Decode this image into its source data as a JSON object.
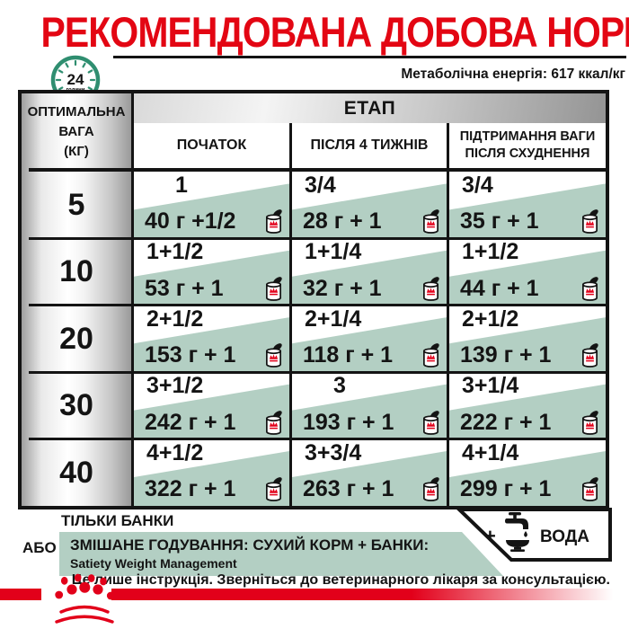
{
  "title": "РЕКОМЕНДОВАНА ДОБОВА НОРМА",
  "header": {
    "clock_value": "24",
    "clock_unit": "години",
    "metabolic_energy": "Метаболічна енергія: 617 ккал/кг"
  },
  "table": {
    "stage_header": "ЕТАП",
    "weight_header_lines": [
      "ОПТИМАЛЬНА",
      "ВАГА",
      "(КГ)"
    ],
    "columns": [
      "ПОЧАТОК",
      "ПІСЛЯ 4 ТИЖНІВ"
    ],
    "column3_lines": [
      "ПІДТРИМАННЯ ВАГИ",
      "ПІСЛЯ СХУДНЕННЯ"
    ],
    "rows": [
      {
        "weight": "5",
        "cells": [
          {
            "cups": "1",
            "mix": "40 г +1/2"
          },
          {
            "cups": "3/4",
            "mix": "28 г + 1"
          },
          {
            "cups": "3/4",
            "mix": "35 г + 1"
          }
        ]
      },
      {
        "weight": "10",
        "cells": [
          {
            "cups": "1+1/2",
            "mix": "53 г + 1"
          },
          {
            "cups": "1+1/4",
            "mix": "32 г + 1"
          },
          {
            "cups": "1+1/2",
            "mix": "44 г + 1"
          }
        ]
      },
      {
        "weight": "20",
        "cells": [
          {
            "cups": "2+1/2",
            "mix": "153 г + 1"
          },
          {
            "cups": "2+1/4",
            "mix": "118 г + 1"
          },
          {
            "cups": "2+1/2",
            "mix": "139 г + 1"
          }
        ]
      },
      {
        "weight": "30",
        "cells": [
          {
            "cups": "3+1/2",
            "mix": "242 г + 1"
          },
          {
            "cups": "3",
            "mix": "193 г + 1"
          },
          {
            "cups": "3+1/4",
            "mix": "222 г + 1"
          }
        ]
      },
      {
        "weight": "40",
        "cells": [
          {
            "cups": "4+1/2",
            "mix": "322 г + 1"
          },
          {
            "cups": "3+3/4",
            "mix": "263 г + 1"
          },
          {
            "cups": "4+1/4",
            "mix": "299 г + 1"
          }
        ]
      }
    ]
  },
  "bottom": {
    "only_cans": "ТІЛЬКИ БАНКИ",
    "or_label": "АБО",
    "mixed_line1": "ЗМІШАНЕ ГОДУВАННЯ: СУХИЙ КОРМ + БАНКИ:",
    "mixed_line2": "Satiety Weight Management",
    "plus": "+",
    "water": "ВОДА"
  },
  "footer": {
    "note": "Це лише інструкція. Зверніться до ветеринарного лікаря за консультацією."
  },
  "icons": {
    "clock": "24h-clock-icon",
    "can": "can-icon",
    "faucet": "water-tap-icon",
    "logo": "royal-canin-crown-logo"
  },
  "colors": {
    "title_red": "#e30613",
    "brand_red": "#e2001a",
    "sage_green": "#b3cfc3",
    "clock_green": "#2f8e70",
    "ink": "#141414"
  }
}
